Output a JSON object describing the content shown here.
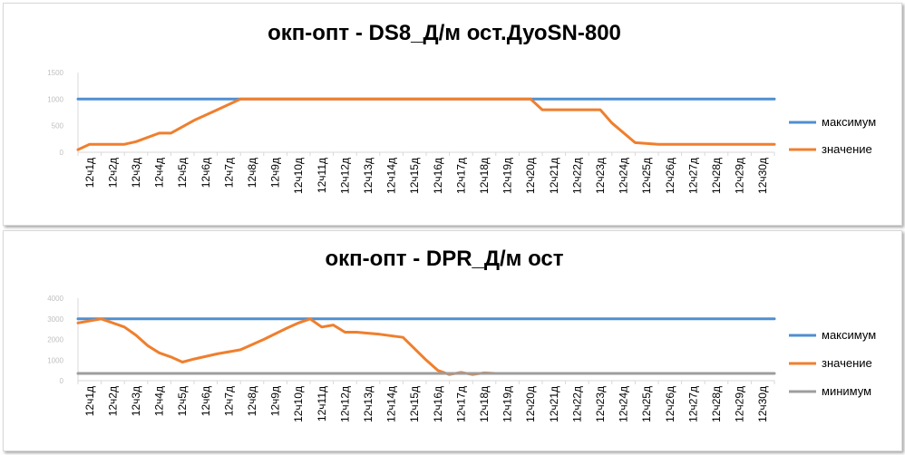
{
  "colors": {
    "max": "#4f8fd0",
    "value": "#ef7f2d",
    "min": "#9d9d9d",
    "axis": "#d9d9d9"
  },
  "chart_data": [
    {
      "type": "line",
      "title": "окп-опт - DS8_Д/м ост.ДуоSN-800",
      "categories": [
        "12ч1д",
        "12ч2д",
        "12ч3д",
        "12ч4д",
        "12ч5д",
        "12ч6д",
        "12ч7д",
        "12ч8д",
        "12ч9д",
        "12ч10д",
        "12ч11д",
        "12ч12д",
        "12ч13д",
        "12ч14д",
        "12ч15д",
        "12ч16д",
        "12ч17д",
        "12ч18д",
        "12ч19д",
        "12ч20д",
        "12ч21д",
        "12ч22д",
        "12ч23д",
        "12ч24д",
        "12ч25д",
        "12ч26д",
        "12ч27д",
        "12ч28д",
        "12ч29д",
        "12ч30д"
      ],
      "y_ticks": [
        "0",
        "500",
        "1000",
        "1500"
      ],
      "ylim": [
        0,
        1500
      ],
      "legend_position": "right",
      "series": [
        {
          "name": "максимум",
          "color_key": "max",
          "x": [
            0,
            30
          ],
          "values": [
            1000,
            1000
          ]
        },
        {
          "name": "значение",
          "color_key": "value",
          "x": [
            0,
            0.5,
            1.5,
            2,
            2.5,
            3.5,
            4,
            5,
            6,
            7,
            8,
            9,
            10,
            11,
            12,
            13,
            14,
            15,
            16,
            17,
            18,
            19,
            19.5,
            20,
            21,
            22,
            22.5,
            23,
            24,
            25,
            26,
            27,
            28,
            29,
            30
          ],
          "values": [
            50,
            150,
            150,
            150,
            200,
            360,
            360,
            600,
            800,
            1000,
            1000,
            1000,
            1000,
            1000,
            1000,
            1000,
            1000,
            1000,
            1000,
            1000,
            1000,
            1000,
            1000,
            800,
            800,
            800,
            800,
            550,
            180,
            150,
            150,
            150,
            150,
            150,
            150
          ]
        }
      ]
    },
    {
      "type": "line",
      "title": "окп-опт - DPR_Д/м ост",
      "categories": [
        "12ч1д",
        "12ч2д",
        "12ч3д",
        "12ч4д",
        "12ч5д",
        "12ч6д",
        "12ч7д",
        "12ч8д",
        "12ч9д",
        "12ч10д",
        "12ч11д",
        "12ч12д",
        "12ч13д",
        "12ч14д",
        "12ч15д",
        "12ч16д",
        "12ч17д",
        "12ч18д",
        "12ч19д",
        "12ч20д",
        "12ч21д",
        "12ч22д",
        "12ч23д",
        "12ч24д",
        "12ч25д",
        "12ч26д",
        "12ч27д",
        "12ч28д",
        "12ч29д",
        "12ч30д"
      ],
      "y_ticks": [
        "0",
        "1000",
        "2000",
        "3000",
        "4000"
      ],
      "ylim": [
        0,
        4000
      ],
      "legend_position": "right",
      "series": [
        {
          "name": "максимум",
          "color_key": "max",
          "x": [
            0,
            30
          ],
          "values": [
            3000,
            3000
          ]
        },
        {
          "name": "значение",
          "color_key": "value",
          "x": [
            0,
            1,
            2,
            2.5,
            3,
            3.5,
            4,
            4.5,
            5,
            6,
            7,
            8,
            9,
            9.5,
            10,
            10.5,
            11,
            11.5,
            12,
            13,
            14,
            15,
            15.5,
            16,
            16.5,
            17,
            17.5,
            18
          ],
          "values": [
            2800,
            3000,
            2600,
            2200,
            1700,
            1350,
            1150,
            900,
            1050,
            1300,
            1500,
            2000,
            2550,
            2800,
            3000,
            2600,
            2700,
            2350,
            2350,
            2250,
            2100,
            1000,
            500,
            300,
            400,
            300,
            380,
            350
          ]
        },
        {
          "name": "минимум",
          "color_key": "min",
          "x": [
            0,
            30
          ],
          "values": [
            350,
            350
          ]
        }
      ]
    }
  ]
}
